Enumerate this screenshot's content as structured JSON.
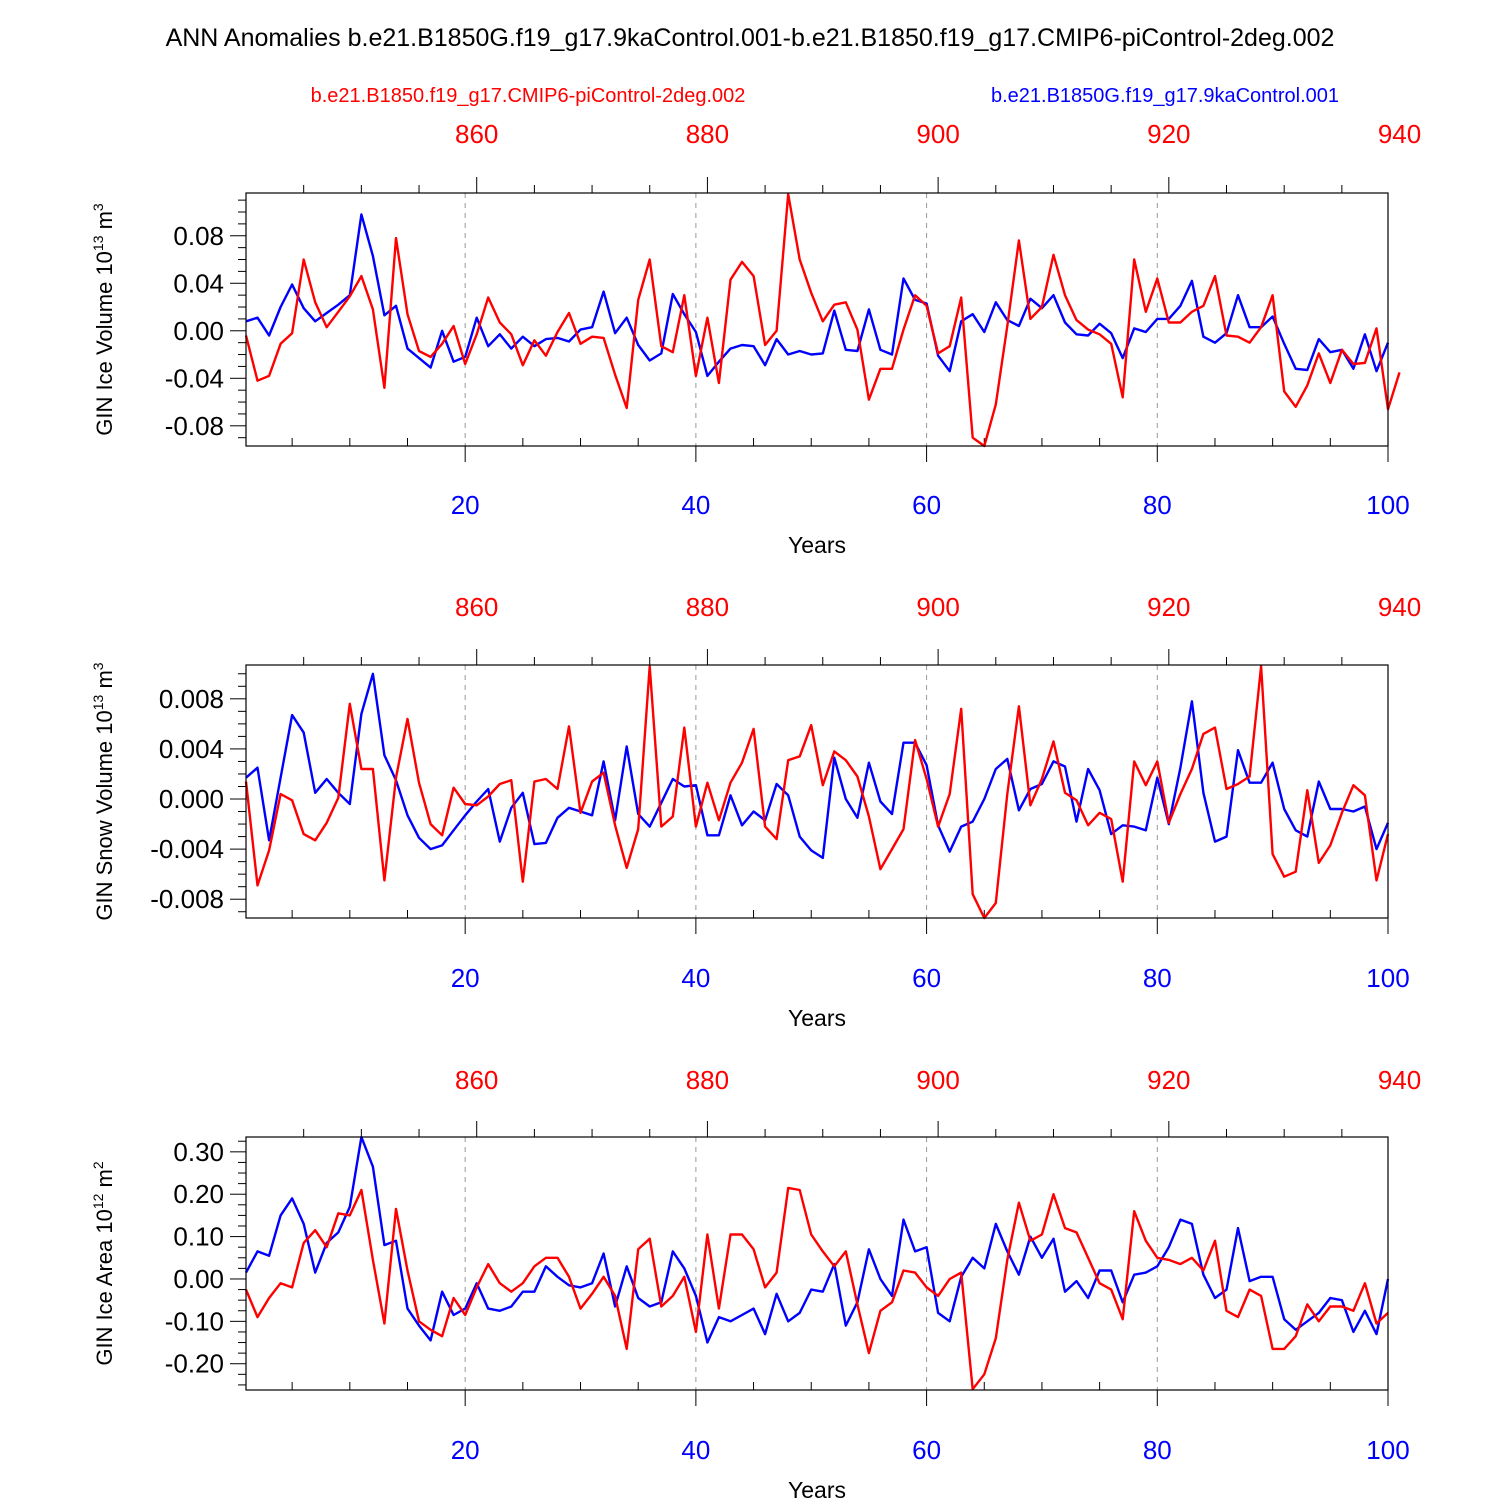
{
  "title": "ANN Anomalies b.e21.B1850G.f19_g17.9kaControl.001-b.e21.B1850.f19_g17.CMIP6-piControl-2deg.002",
  "legend": {
    "red_label": "b.e21.B1850.f19_g17.CMIP6-piControl-2deg.002",
    "blue_label": "b.e21.B1850G.f19_g17.9kaControl.001"
  },
  "colors": {
    "red": "#ff0000",
    "blue": "#0000ff",
    "grid": "#999999",
    "axis": "#000000"
  },
  "chart_data": [
    {
      "type": "line",
      "ylabel_main": "GIN Ice Volume 10",
      "ylabel_exp": "13",
      "ylabel_unit": " m",
      "ylabel_unit_exp": "3",
      "xlabel": "Years",
      "xlim": [
        1,
        100
      ],
      "ylim": [
        -0.097,
        0.116
      ],
      "bottom_ticks": [
        "20",
        "40",
        "60",
        "80",
        "100"
      ],
      "top_ticks": [
        "860",
        "880",
        "900",
        "920",
        "940"
      ],
      "y_ticks": [
        "0.08",
        "0.04",
        "0.00",
        "-0.04",
        "-0.08"
      ],
      "series": [
        {
          "name": "b.e21.B1850G.f19_g17.9kaControl.001",
          "color": "#0000ff",
          "values": [
            0.008,
            0.011,
            -0.004,
            0.02,
            0.039,
            0.019,
            0.008,
            0.015,
            0.022,
            0.03,
            0.098,
            0.063,
            0.013,
            0.021,
            -0.015,
            -0.023,
            -0.031,
            0.0,
            -0.026,
            -0.022,
            0.011,
            -0.013,
            -0.003,
            -0.015,
            -0.005,
            -0.013,
            -0.007,
            -0.006,
            -0.009,
            0.001,
            0.003,
            0.033,
            -0.002,
            0.011,
            -0.012,
            -0.025,
            -0.019,
            0.031,
            0.014,
            -0.001,
            -0.038,
            -0.026,
            -0.015,
            -0.012,
            -0.013,
            -0.029,
            -0.007,
            -0.02,
            -0.017,
            -0.02,
            -0.019,
            0.017,
            -0.016,
            -0.017,
            0.018,
            -0.016,
            -0.02,
            0.044,
            0.026,
            0.023,
            -0.021,
            -0.034,
            0.008,
            0.014,
            -0.001,
            0.024,
            0.009,
            0.004,
            0.027,
            0.019,
            0.03,
            0.007,
            -0.003,
            -0.004,
            0.006,
            -0.002,
            -0.023,
            0.002,
            -0.001,
            0.01,
            0.01,
            0.021,
            0.042,
            -0.005,
            -0.01,
            -0.002,
            0.03,
            0.003,
            0.003,
            0.012,
            -0.011,
            -0.032,
            -0.033,
            -0.007,
            -0.018,
            -0.016,
            -0.032,
            -0.003,
            -0.034,
            -0.01
          ]
        },
        {
          "name": "b.e21.B1850.f19_g17.CMIP6-piControl-2deg.002",
          "color": "#ff0000",
          "values": [
            -0.004,
            -0.042,
            -0.038,
            -0.011,
            -0.002,
            0.06,
            0.024,
            0.003,
            0.016,
            0.029,
            0.046,
            0.018,
            -0.048,
            0.078,
            0.014,
            -0.017,
            -0.022,
            -0.011,
            0.004,
            -0.028,
            -0.003,
            0.028,
            0.007,
            -0.003,
            -0.029,
            -0.008,
            -0.021,
            -0.001,
            0.015,
            -0.011,
            -0.005,
            -0.006,
            -0.037,
            -0.065,
            0.026,
            0.06,
            -0.013,
            -0.018,
            0.03,
            -0.038,
            0.011,
            -0.044,
            0.043,
            0.058,
            0.046,
            -0.012,
            0.0,
            0.115,
            0.06,
            0.032,
            0.008,
            0.022,
            0.024,
            0.001,
            -0.058,
            -0.032,
            -0.032,
            0.001,
            0.03,
            0.021,
            -0.019,
            -0.013,
            0.028,
            -0.09,
            -0.097,
            -0.062,
            0.004,
            0.076,
            0.01,
            0.02,
            0.064,
            0.03,
            0.009,
            0.001,
            -0.003,
            -0.011,
            -0.056,
            0.06,
            0.016,
            0.044,
            0.007,
            0.007,
            0.016,
            0.021,
            0.046,
            -0.004,
            -0.005,
            -0.01,
            0.003,
            0.03,
            -0.051,
            -0.064,
            -0.046,
            -0.019,
            -0.044,
            -0.016,
            -0.028,
            -0.027,
            0.002,
            -0.066,
            -0.035
          ]
        }
      ]
    },
    {
      "type": "line",
      "ylabel_main": "GIN Snow Volume 10",
      "ylabel_exp": "13",
      "ylabel_unit": " m",
      "ylabel_unit_exp": "3",
      "xlabel": "Years",
      "xlim": [
        1,
        100
      ],
      "ylim": [
        -0.0095,
        0.0107
      ],
      "bottom_ticks": [
        "20",
        "40",
        "60",
        "80",
        "100"
      ],
      "top_ticks": [
        "860",
        "880",
        "900",
        "920",
        "940"
      ],
      "y_ticks": [
        "0.008",
        "0.004",
        "0.000",
        "-0.004",
        "-0.008"
      ],
      "series": [
        {
          "name": "b.e21.B1850G.f19_g17.9kaControl.001",
          "color": "#0000ff",
          "values": [
            0.0017,
            0.0025,
            -0.0033,
            0.0017,
            0.0067,
            0.0053,
            0.0005,
            0.0016,
            0.0005,
            -0.0004,
            0.0068,
            0.01,
            0.0035,
            0.0015,
            -0.0013,
            -0.0031,
            -0.004,
            -0.0037,
            -0.0025,
            -0.0013,
            -0.0002,
            0.0008,
            -0.0034,
            -0.0007,
            0.0005,
            -0.0036,
            -0.0035,
            -0.0015,
            -0.0007,
            -0.001,
            -0.0013,
            0.003,
            -0.0017,
            0.0042,
            -0.0012,
            -0.0022,
            -0.0003,
            0.0016,
            0.001,
            0.0011,
            -0.0029,
            -0.0029,
            0.0003,
            -0.0021,
            -0.001,
            -0.0017,
            0.0012,
            0.0003,
            -0.003,
            -0.0041,
            -0.0047,
            0.0033,
            0.0,
            -0.0015,
            0.0029,
            -0.0002,
            -0.0012,
            0.0045,
            0.0045,
            0.0027,
            -0.0021,
            -0.0042,
            -0.0022,
            -0.0018,
            0.0,
            0.0024,
            0.0032,
            -0.0009,
            0.0008,
            0.0012,
            0.003,
            0.0026,
            -0.0018,
            0.0024,
            0.0007,
            -0.0028,
            -0.0021,
            -0.0022,
            -0.0025,
            0.0017,
            -0.002,
            0.0025,
            0.0078,
            0.0005,
            -0.0034,
            -0.003,
            0.0039,
            0.0013,
            0.0013,
            0.0029,
            -0.0008,
            -0.0025,
            -0.003,
            0.0014,
            -0.0008,
            -0.0008,
            -0.001,
            -0.0006,
            -0.004,
            -0.0019
          ]
        },
        {
          "name": "b.e21.B1850.f19_g17.CMIP6-piControl-2deg.002",
          "color": "#ff0000",
          "values": [
            0.0014,
            -0.0069,
            -0.0041,
            0.0004,
            -0.0001,
            -0.0028,
            -0.0033,
            -0.0019,
            0.0001,
            0.0076,
            0.0024,
            0.0024,
            -0.0065,
            0.0017,
            0.0064,
            0.0013,
            -0.002,
            -0.0029,
            0.0009,
            -0.0004,
            -0.0005,
            0.0002,
            0.0012,
            0.0015,
            -0.0066,
            0.0014,
            0.0016,
            0.0008,
            0.0058,
            -0.0011,
            0.0014,
            0.0021,
            -0.0021,
            -0.0055,
            -0.0024,
            0.0106,
            -0.0022,
            -0.0014,
            0.0057,
            -0.0022,
            0.0013,
            -0.0017,
            0.0013,
            0.0029,
            0.0056,
            -0.0022,
            -0.0032,
            0.0031,
            0.0034,
            0.0059,
            0.0011,
            0.0038,
            0.0031,
            0.0018,
            -0.0014,
            -0.0056,
            -0.004,
            -0.0024,
            0.0047,
            0.0016,
            -0.0022,
            0.0004,
            0.0072,
            -0.0076,
            -0.0095,
            -0.0083,
            0.0004,
            0.0074,
            -0.0005,
            0.0016,
            0.0046,
            0.0005,
            -0.0001,
            -0.0021,
            -0.0011,
            -0.0016,
            -0.0066,
            0.003,
            0.0011,
            0.003,
            -0.0019,
            0.0004,
            0.0024,
            0.0052,
            0.0057,
            0.0008,
            0.0012,
            0.0018,
            0.0106,
            -0.0044,
            -0.0062,
            -0.0058,
            0.0007,
            -0.0051,
            -0.0037,
            -0.0011,
            0.0011,
            0.0003,
            -0.0065,
            -0.0028
          ]
        }
      ]
    },
    {
      "type": "line",
      "ylabel_main": "GIN Ice Area 10",
      "ylabel_exp": "12",
      "ylabel_unit": " m",
      "ylabel_unit_exp": "2",
      "xlabel": "Years",
      "xlim": [
        1,
        100
      ],
      "ylim": [
        -0.262,
        0.335
      ],
      "bottom_ticks": [
        "20",
        "40",
        "60",
        "80",
        "100"
      ],
      "top_ticks": [
        "860",
        "880",
        "900",
        "920",
        "940"
      ],
      "y_ticks": [
        "0.30",
        "0.20",
        "0.10",
        "0.00",
        "-0.10",
        "-0.20"
      ],
      "series": [
        {
          "name": "b.e21.B1850G.f19_g17.9kaControl.001",
          "color": "#0000ff",
          "values": [
            0.015,
            0.065,
            0.055,
            0.15,
            0.19,
            0.13,
            0.015,
            0.085,
            0.11,
            0.17,
            0.335,
            0.265,
            0.08,
            0.09,
            -0.07,
            -0.11,
            -0.145,
            -0.03,
            -0.085,
            -0.07,
            -0.01,
            -0.07,
            -0.075,
            -0.065,
            -0.03,
            -0.03,
            0.03,
            0.005,
            -0.015,
            -0.02,
            -0.01,
            0.06,
            -0.065,
            0.03,
            -0.045,
            -0.065,
            -0.055,
            0.065,
            0.025,
            -0.04,
            -0.15,
            -0.09,
            -0.1,
            -0.085,
            -0.07,
            -0.13,
            -0.035,
            -0.1,
            -0.08,
            -0.025,
            -0.03,
            0.035,
            -0.11,
            -0.055,
            0.07,
            0.0,
            -0.04,
            0.14,
            0.065,
            0.075,
            -0.08,
            -0.1,
            0.005,
            0.05,
            0.025,
            0.13,
            0.065,
            0.01,
            0.1,
            0.05,
            0.095,
            -0.03,
            -0.005,
            -0.045,
            0.02,
            0.02,
            -0.055,
            0.01,
            0.015,
            0.03,
            0.075,
            0.14,
            0.13,
            0.01,
            -0.045,
            -0.025,
            0.12,
            -0.005,
            0.005,
            0.005,
            -0.095,
            -0.12,
            -0.1,
            -0.08,
            -0.045,
            -0.05,
            -0.125,
            -0.075,
            -0.13,
            0.0
          ]
        },
        {
          "name": "b.e21.B1850.f19_g17.CMIP6-piControl-2deg.002",
          "color": "#ff0000",
          "values": [
            -0.025,
            -0.09,
            -0.045,
            -0.01,
            -0.02,
            0.085,
            0.115,
            0.075,
            0.155,
            0.15,
            0.21,
            0.045,
            -0.105,
            0.165,
            0.02,
            -0.1,
            -0.12,
            -0.135,
            -0.045,
            -0.085,
            -0.02,
            0.035,
            -0.01,
            -0.03,
            -0.01,
            0.03,
            0.05,
            0.05,
            0.005,
            -0.07,
            -0.035,
            0.005,
            -0.04,
            -0.165,
            0.07,
            0.095,
            -0.065,
            -0.04,
            0.005,
            -0.125,
            0.105,
            -0.07,
            0.105,
            0.105,
            0.07,
            -0.02,
            0.015,
            0.215,
            0.21,
            0.105,
            0.065,
            0.03,
            0.065,
            -0.06,
            -0.175,
            -0.075,
            -0.055,
            0.02,
            0.015,
            -0.02,
            -0.04,
            0.0,
            0.015,
            -0.26,
            -0.225,
            -0.14,
            0.045,
            0.18,
            0.09,
            0.105,
            0.2,
            0.12,
            0.11,
            0.05,
            -0.01,
            -0.025,
            -0.095,
            0.16,
            0.09,
            0.05,
            0.045,
            0.035,
            0.05,
            0.02,
            0.09,
            -0.075,
            -0.09,
            -0.025,
            -0.04,
            -0.165,
            -0.165,
            -0.135,
            -0.06,
            -0.1,
            -0.065,
            -0.065,
            -0.075,
            -0.01,
            -0.105,
            -0.08
          ]
        }
      ]
    }
  ]
}
